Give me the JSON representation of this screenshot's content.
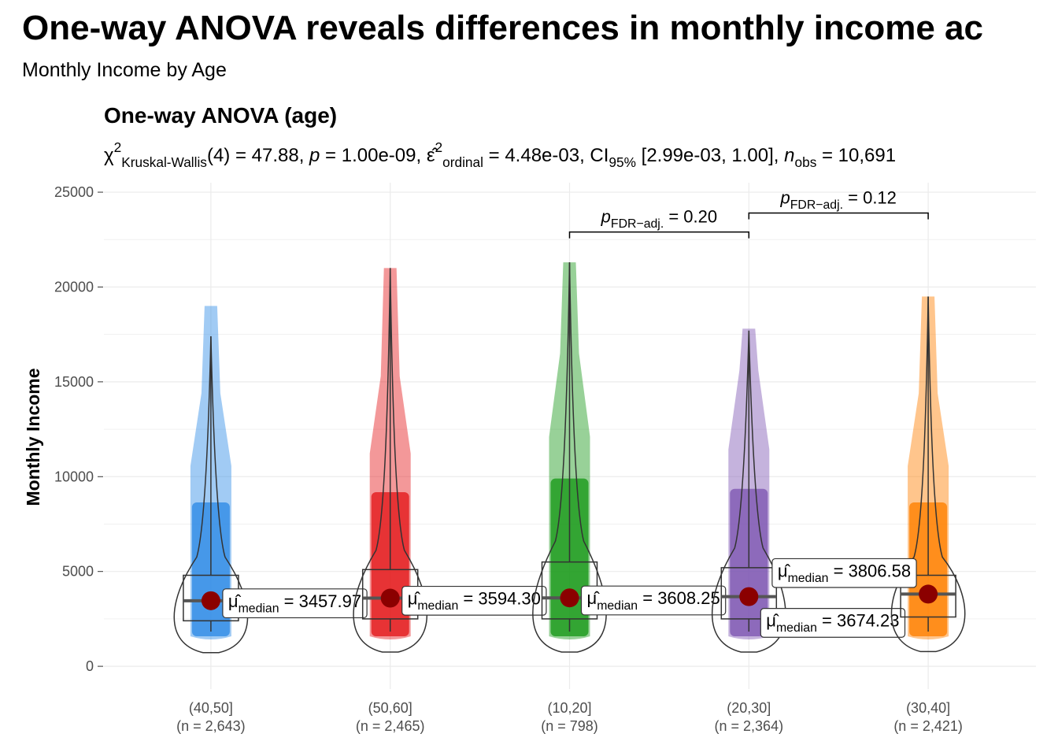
{
  "chart_data": {
    "type": "violin-box",
    "title": "One-way ANOVA reveals differences in monthly income ac",
    "subtitle": "Monthly Income by Age",
    "plot_title": "One-way ANOVA (age)",
    "stats": [
      {
        "text": "χ"
      },
      {
        "text": "2",
        "pos": "sup"
      },
      {
        "text": "Kruskal-Wallis",
        "pos": "sub"
      },
      {
        "text": "(4) = 47.88, "
      },
      {
        "text": "p",
        "italic": true
      },
      {
        "text": " = 1.00e-09, "
      },
      {
        "text": "ε̂"
      },
      {
        "text": "2",
        "pos": "sup"
      },
      {
        "text": "ordinal",
        "pos": "sub"
      },
      {
        "text": " = 4.48e-03, CI"
      },
      {
        "text": "95%",
        "pos": "sub"
      },
      {
        "text": " [2.99e-03, 1.00], "
      },
      {
        "text": "n",
        "italic": true
      },
      {
        "text": "obs",
        "pos": "sub"
      },
      {
        "text": " = 10,691"
      }
    ],
    "y_label": "Monthly Income",
    "categories": [
      "(40,50]",
      "(50,60]",
      "(10,20]",
      "(20,30]",
      "(30,40]"
    ],
    "n_labels": [
      "(n = 2,643)",
      "(n = 2,465)",
      "(n = 798)",
      "(n = 2,364)",
      "(n = 2,421)"
    ],
    "colors": [
      "#2f8be6",
      "#e41a1c",
      "#1a9a1a",
      "#7e57b3",
      "#ff7f00"
    ],
    "min": [
      1000,
      1000,
      1000,
      1000,
      1000
    ],
    "q1": [
      2400,
      2500,
      2500,
      2500,
      2600
    ],
    "q3": [
      4800,
      5100,
      5500,
      5200,
      4800
    ],
    "whisker_max": [
      17400,
      21000,
      21300,
      17700,
      19500
    ],
    "point_max": [
      19000,
      21000,
      21300,
      17800,
      19500
    ],
    "medians": [
      3457.97,
      3594.3,
      3608.25,
      3674.23,
      3806.58
    ],
    "value_labels": [
      "3457.97",
      "3594.30",
      "3608.25",
      "3674.23",
      "3806.58"
    ],
    "median_label_parts": [
      {
        "text": "μ̂"
      },
      {
        "text": "median",
        "pos": "sub"
      },
      {
        "text": " = "
      }
    ],
    "median_color": "#8b0000",
    "brackets": [
      {
        "from": 2,
        "to": 3,
        "y": 22900,
        "label": [
          {
            "text": "p",
            "italic": true
          },
          {
            "text": "FDR−adj.",
            "pos": "sub"
          },
          {
            "text": " = 0.20"
          }
        ]
      },
      {
        "from": 3,
        "to": 4,
        "y": 23900,
        "label": [
          {
            "text": "p",
            "italic": true
          },
          {
            "text": "FDR−adj.",
            "pos": "sub"
          },
          {
            "text": " = 0.12"
          }
        ]
      }
    ],
    "ylim": [
      -1200,
      25500
    ],
    "yticks": [
      0,
      5000,
      10000,
      15000,
      20000,
      25000
    ],
    "grid": true
  }
}
